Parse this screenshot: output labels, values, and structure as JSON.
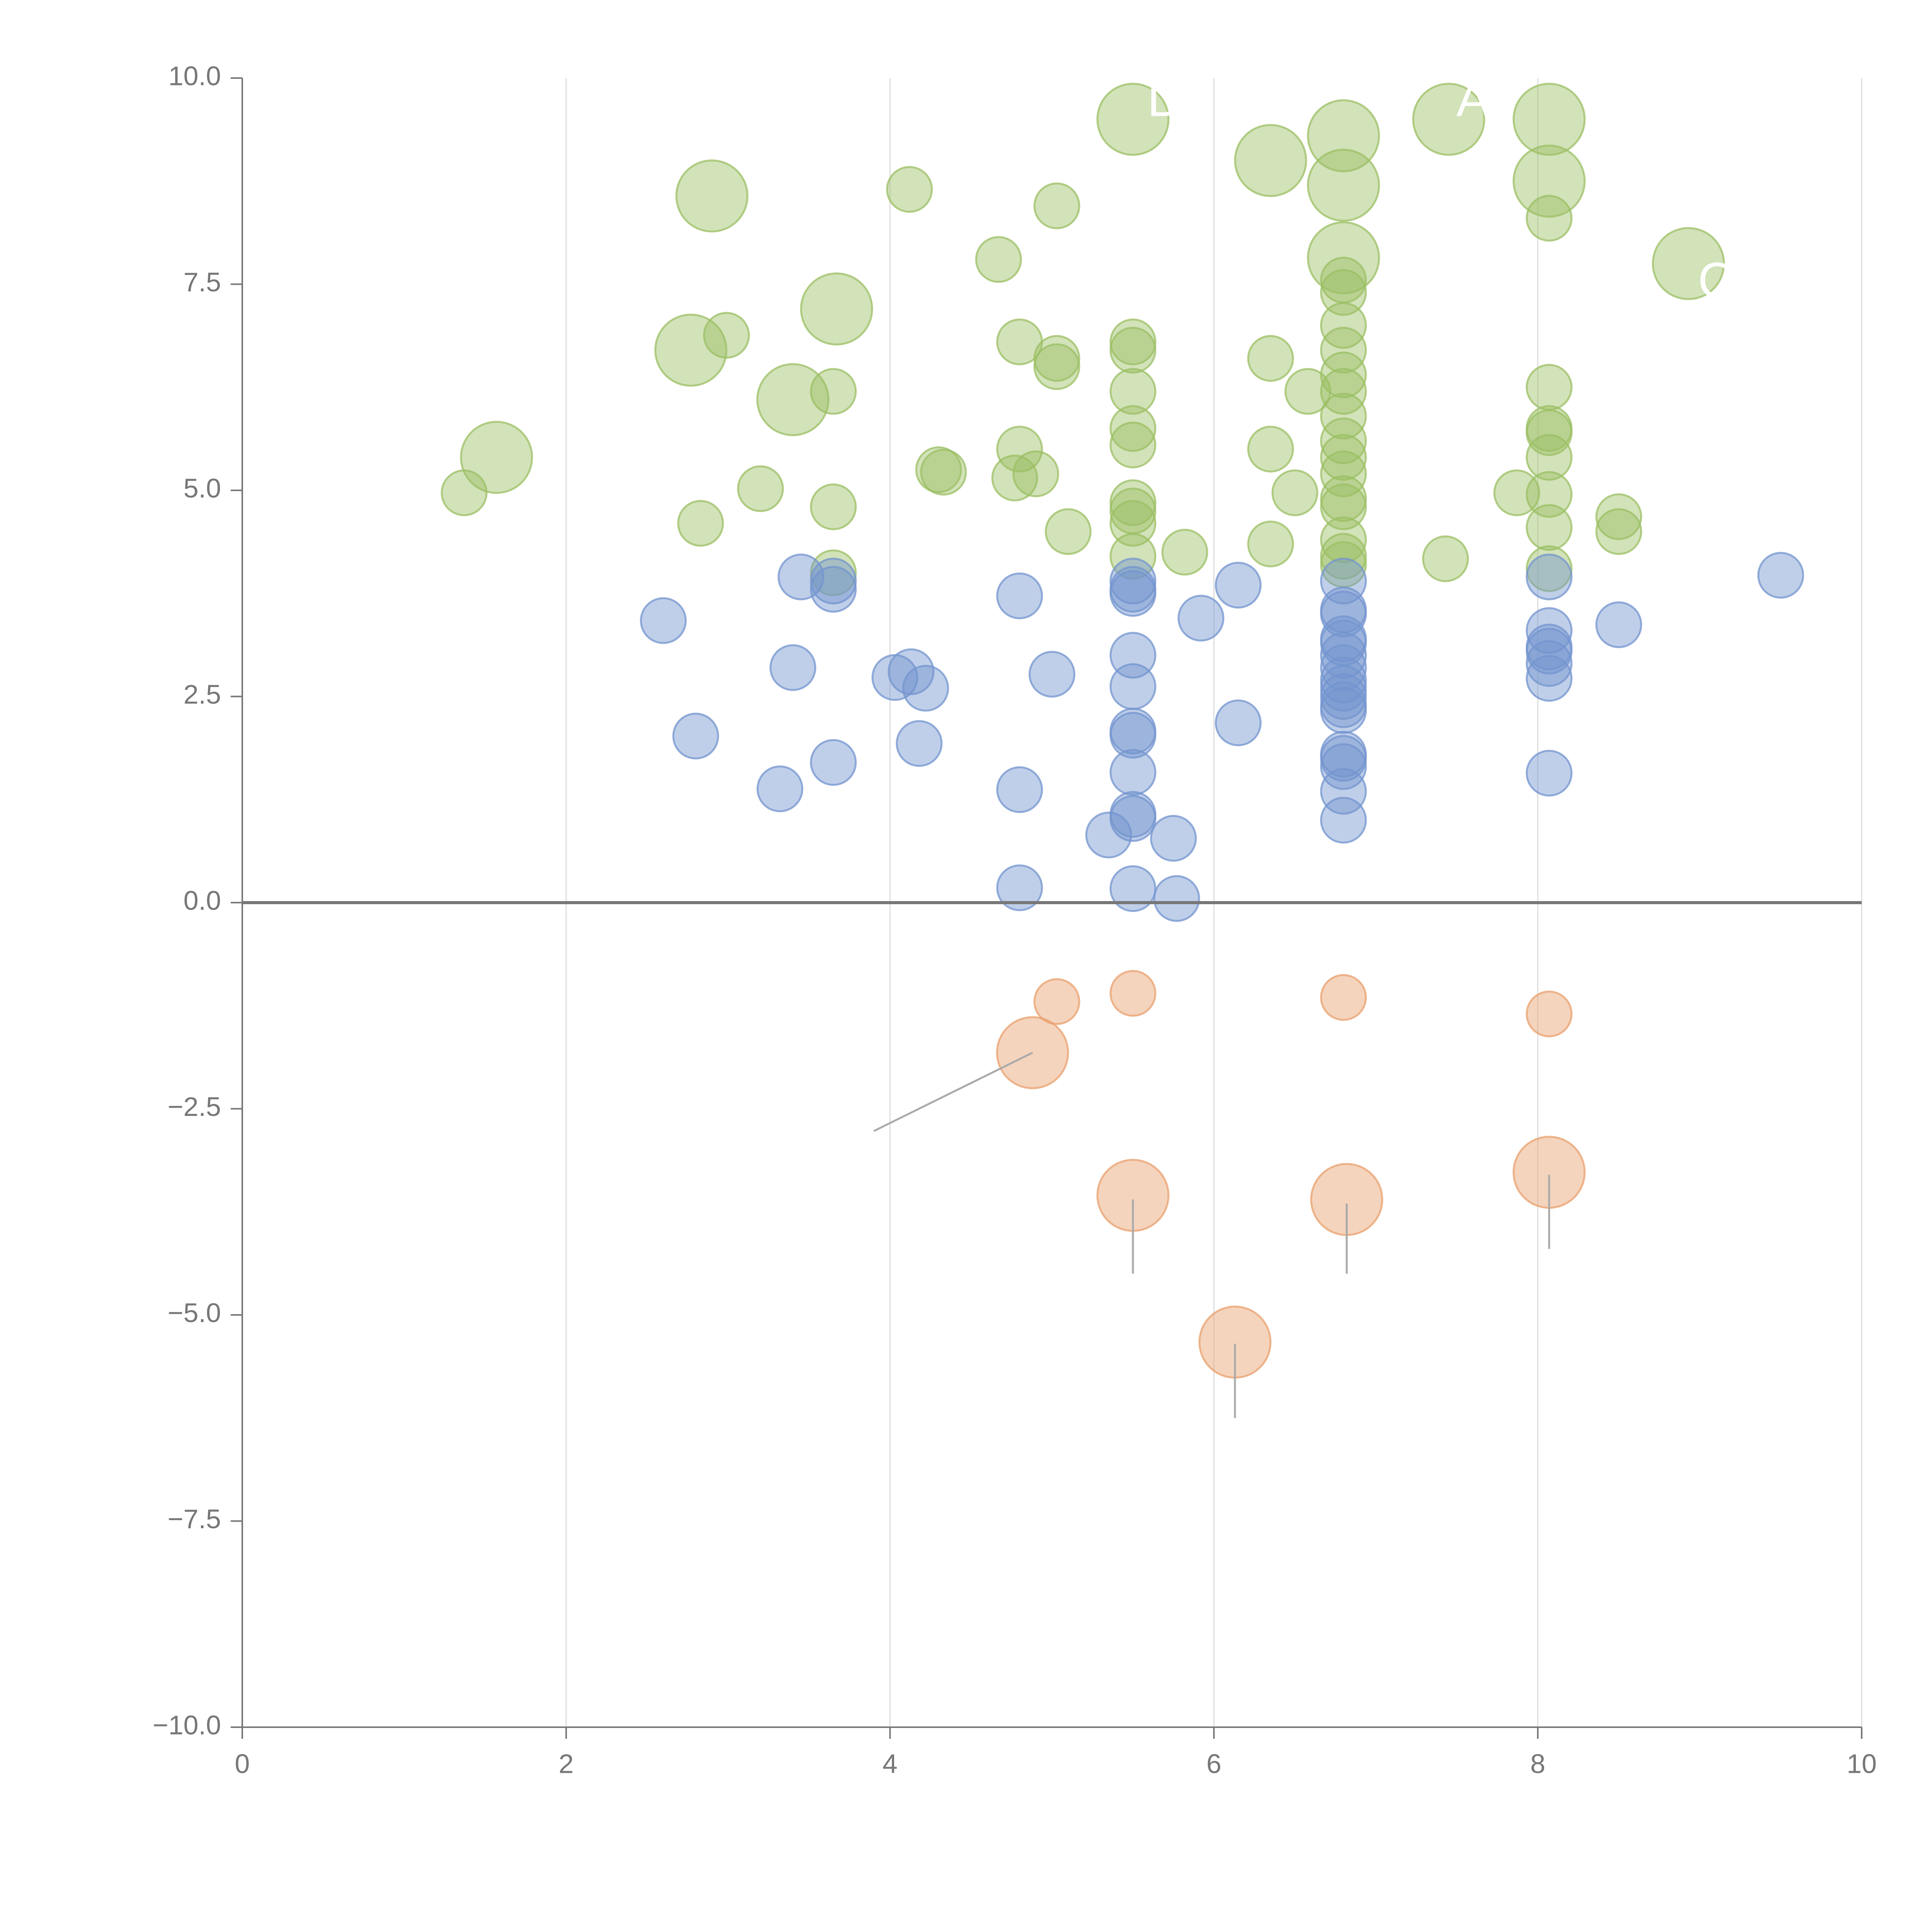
{
  "chart_data": {
    "type": "scatter",
    "title": "",
    "xlabel": "",
    "ylabel": "",
    "xlim": [
      0,
      10
    ],
    "ylim": [
      -10,
      10
    ],
    "x_ticks": [
      "0",
      "2",
      "4",
      "6",
      "8",
      "10"
    ],
    "y_ticks": [
      "10.0",
      "7.5",
      "5.0",
      "2.5",
      "0.0",
      "−2.5",
      "−5.0",
      "−7.5",
      "−10.0"
    ],
    "grid": "vertical",
    "zero_line": 0,
    "colors": {
      "green": "#9bbf63",
      "blue": "#7394cf",
      "orange": "#e8a06d"
    },
    "labels": [
      {
        "text": "D",
        "x": 5.7,
        "y": 9.7
      },
      {
        "text": "A",
        "x": 7.6,
        "y": 9.7
      },
      {
        "text": "C",
        "x": 9.1,
        "y": 7.5
      }
    ],
    "series": [
      {
        "name": "green",
        "color": "#9bbf63",
        "points": [
          [
            5.5,
            9.5,
            2
          ],
          [
            6.8,
            9.3,
            2
          ],
          [
            7.45,
            9.5,
            2
          ],
          [
            8.07,
            9.5,
            2
          ],
          [
            6.35,
            9.0,
            2
          ],
          [
            6.8,
            8.7,
            2
          ],
          [
            8.07,
            8.75,
            2
          ],
          [
            2.9,
            8.57,
            2
          ],
          [
            6.8,
            7.82,
            2
          ],
          [
            8.93,
            7.75,
            2
          ],
          [
            3.67,
            7.2,
            2
          ],
          [
            2.77,
            6.7,
            2
          ],
          [
            3.4,
            6.1,
            2
          ],
          [
            1.57,
            5.4,
            2
          ],
          [
            4.12,
            8.65,
            1
          ],
          [
            5.03,
            8.45,
            1
          ],
          [
            4.67,
            7.8,
            1
          ],
          [
            8.07,
            8.3,
            1
          ],
          [
            6.8,
            7.55,
            1
          ],
          [
            6.8,
            7.4,
            1
          ],
          [
            6.8,
            7.0,
            1
          ],
          [
            6.8,
            6.7,
            1
          ],
          [
            6.8,
            6.4,
            1
          ],
          [
            6.8,
            6.2,
            1
          ],
          [
            6.8,
            5.9,
            1
          ],
          [
            6.8,
            5.6,
            1
          ],
          [
            6.8,
            5.4,
            1
          ],
          [
            6.8,
            5.2,
            1
          ],
          [
            6.8,
            4.9,
            1
          ],
          [
            6.8,
            4.8,
            1
          ],
          [
            6.8,
            4.4,
            1
          ],
          [
            6.8,
            4.2,
            1
          ],
          [
            6.8,
            4.1,
            1
          ],
          [
            2.99,
            6.88,
            1
          ],
          [
            4.8,
            6.8,
            1
          ],
          [
            5.03,
            6.6,
            1
          ],
          [
            5.03,
            6.5,
            1
          ],
          [
            5.5,
            6.8,
            1
          ],
          [
            5.5,
            6.7,
            1
          ],
          [
            6.35,
            6.6,
            1
          ],
          [
            6.58,
            6.2,
            1
          ],
          [
            3.65,
            6.2,
            1
          ],
          [
            5.5,
            6.2,
            1
          ],
          [
            8.07,
            6.25,
            1
          ],
          [
            8.07,
            5.75,
            1
          ],
          [
            8.07,
            5.7,
            1
          ],
          [
            8.07,
            5.4,
            1
          ],
          [
            8.07,
            4.95,
            1
          ],
          [
            8.07,
            4.55,
            1
          ],
          [
            8.07,
            4.05,
            1
          ],
          [
            5.5,
            5.75,
            1
          ],
          [
            5.5,
            5.55,
            1
          ],
          [
            4.8,
            5.5,
            1
          ],
          [
            6.35,
            5.5,
            1
          ],
          [
            4.3,
            5.25,
            1
          ],
          [
            4.33,
            5.22,
            1
          ],
          [
            4.77,
            5.15,
            1
          ],
          [
            4.9,
            5.2,
            1
          ],
          [
            3.2,
            5.02,
            1
          ],
          [
            1.37,
            4.97,
            1
          ],
          [
            6.5,
            4.97,
            1
          ],
          [
            7.87,
            4.97,
            1
          ],
          [
            8.5,
            4.68,
            1
          ],
          [
            8.5,
            4.5,
            1
          ],
          [
            3.65,
            4.8,
            1
          ],
          [
            5.5,
            4.85,
            1
          ],
          [
            5.5,
            4.75,
            1
          ],
          [
            5.5,
            4.6,
            1
          ],
          [
            2.83,
            4.6,
            1
          ],
          [
            5.1,
            4.5,
            1
          ],
          [
            6.35,
            4.35,
            1
          ],
          [
            5.82,
            4.25,
            1
          ],
          [
            5.5,
            4.2,
            1
          ],
          [
            7.43,
            4.17,
            1
          ],
          [
            3.65,
            4.0,
            1
          ]
        ]
      },
      {
        "name": "blue",
        "color": "#7394cf",
        "points": [
          [
            3.45,
            3.95,
            1
          ],
          [
            3.65,
            3.9,
            1
          ],
          [
            3.65,
            3.8,
            1
          ],
          [
            5.5,
            3.9,
            1
          ],
          [
            5.5,
            3.8,
            1
          ],
          [
            5.5,
            3.75,
            1
          ],
          [
            6.15,
            3.85,
            1
          ],
          [
            6.8,
            3.9,
            1
          ],
          [
            8.07,
            3.95,
            1
          ],
          [
            9.5,
            3.97,
            1
          ],
          [
            4.8,
            3.72,
            1
          ],
          [
            2.6,
            3.42,
            1
          ],
          [
            5.92,
            3.45,
            1
          ],
          [
            6.8,
            3.55,
            1
          ],
          [
            6.8,
            3.5,
            1
          ],
          [
            8.5,
            3.37,
            1
          ],
          [
            8.07,
            3.3,
            1
          ],
          [
            6.8,
            3.2,
            1
          ],
          [
            6.8,
            3.15,
            1
          ],
          [
            8.07,
            3.1,
            1
          ],
          [
            8.07,
            3.05,
            1
          ],
          [
            6.8,
            3.0,
            1
          ],
          [
            6.8,
            2.85,
            1
          ],
          [
            8.07,
            2.9,
            1
          ],
          [
            5.5,
            3.0,
            1
          ],
          [
            3.4,
            2.85,
            1
          ],
          [
            4.13,
            2.8,
            1
          ],
          [
            4.03,
            2.73,
            1
          ],
          [
            5.0,
            2.77,
            1
          ],
          [
            8.07,
            2.72,
            1
          ],
          [
            6.8,
            2.7,
            1
          ],
          [
            6.8,
            2.6,
            1
          ],
          [
            5.5,
            2.62,
            1
          ],
          [
            4.22,
            2.6,
            1
          ],
          [
            6.8,
            2.5,
            1
          ],
          [
            6.8,
            2.4,
            1
          ],
          [
            6.8,
            2.33,
            1
          ],
          [
            6.15,
            2.18,
            1
          ],
          [
            5.5,
            2.08,
            1
          ],
          [
            5.5,
            2.03,
            1
          ],
          [
            2.8,
            2.02,
            1
          ],
          [
            4.18,
            1.93,
            1
          ],
          [
            6.8,
            1.8,
            1
          ],
          [
            6.8,
            1.75,
            1
          ],
          [
            3.65,
            1.7,
            1
          ],
          [
            6.8,
            1.65,
            1
          ],
          [
            5.5,
            1.58,
            1
          ],
          [
            8.07,
            1.57,
            1
          ],
          [
            3.32,
            1.38,
            1
          ],
          [
            4.8,
            1.37,
            1
          ],
          [
            6.8,
            1.35,
            1
          ],
          [
            5.5,
            1.07,
            1
          ],
          [
            5.5,
            1.02,
            1
          ],
          [
            6.8,
            1.0,
            1
          ],
          [
            5.35,
            0.82,
            1
          ],
          [
            5.75,
            0.78,
            1
          ],
          [
            4.8,
            0.18,
            1
          ],
          [
            5.5,
            0.17,
            1
          ],
          [
            5.77,
            0.05,
            1
          ]
        ]
      },
      {
        "name": "orange",
        "color": "#e8a06d",
        "points": [
          [
            5.03,
            -1.2,
            1
          ],
          [
            5.5,
            -1.1,
            1
          ],
          [
            6.8,
            -1.15,
            1
          ],
          [
            8.07,
            -1.35,
            1
          ],
          [
            4.88,
            -1.82,
            2
          ],
          [
            5.5,
            -3.55,
            2
          ],
          [
            6.82,
            -3.6,
            2
          ],
          [
            8.07,
            -3.27,
            2
          ],
          [
            6.13,
            -5.33,
            2
          ]
        ]
      }
    ],
    "leaders": [
      {
        "x1": 4.88,
        "y1": -1.82,
        "x2": 3.9,
        "y2": -2.77
      },
      {
        "x1": 5.5,
        "y1": -3.6,
        "x2": 5.5,
        "y2": -4.5
      },
      {
        "x1": 6.82,
        "y1": -3.65,
        "x2": 6.82,
        "y2": -4.5
      },
      {
        "x1": 8.07,
        "y1": -3.3,
        "x2": 8.07,
        "y2": -4.2
      },
      {
        "x1": 6.13,
        "y1": -5.35,
        "x2": 6.13,
        "y2": -6.25
      }
    ]
  }
}
